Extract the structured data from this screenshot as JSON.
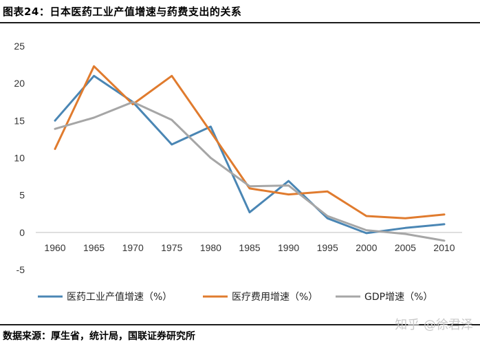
{
  "header": {
    "title": "图表24：日本医药工业产值增速与药费支出的关系"
  },
  "footer": {
    "source": "数据来源：厚生省，统计局，国联证券研究所",
    "watermark": "知乎 @徐君泽"
  },
  "chart_data": {
    "type": "line",
    "title": "",
    "xlabel": "",
    "ylabel": "",
    "categories": [
      "1960",
      "1965",
      "1970",
      "1975",
      "1980",
      "1985",
      "1990",
      "1995",
      "2000",
      "2005",
      "2010"
    ],
    "ylim": [
      -5,
      25
    ],
    "yticks": [
      "25",
      "20",
      "15",
      "10",
      "5",
      "0",
      "-5"
    ],
    "grid": false,
    "legend_position": "bottom",
    "series": [
      {
        "name": "医药工业产值增速（%）",
        "color": "#4a86b4",
        "values": [
          15.0,
          21.0,
          17.5,
          11.8,
          14.2,
          2.7,
          6.9,
          1.9,
          -0.1,
          0.6,
          1.1
        ]
      },
      {
        "name": "医疗费用增速（%）",
        "color": "#e07b2e",
        "values": [
          11.2,
          22.3,
          17.2,
          21.0,
          13.5,
          5.9,
          5.1,
          5.5,
          2.2,
          1.9,
          2.4
        ]
      },
      {
        "name": "GDP增速（%）",
        "color": "#a6a6a6",
        "values": [
          13.9,
          15.4,
          17.5,
          15.1,
          10.0,
          6.2,
          6.3,
          2.2,
          0.3,
          -0.2,
          -1.1
        ]
      }
    ]
  }
}
